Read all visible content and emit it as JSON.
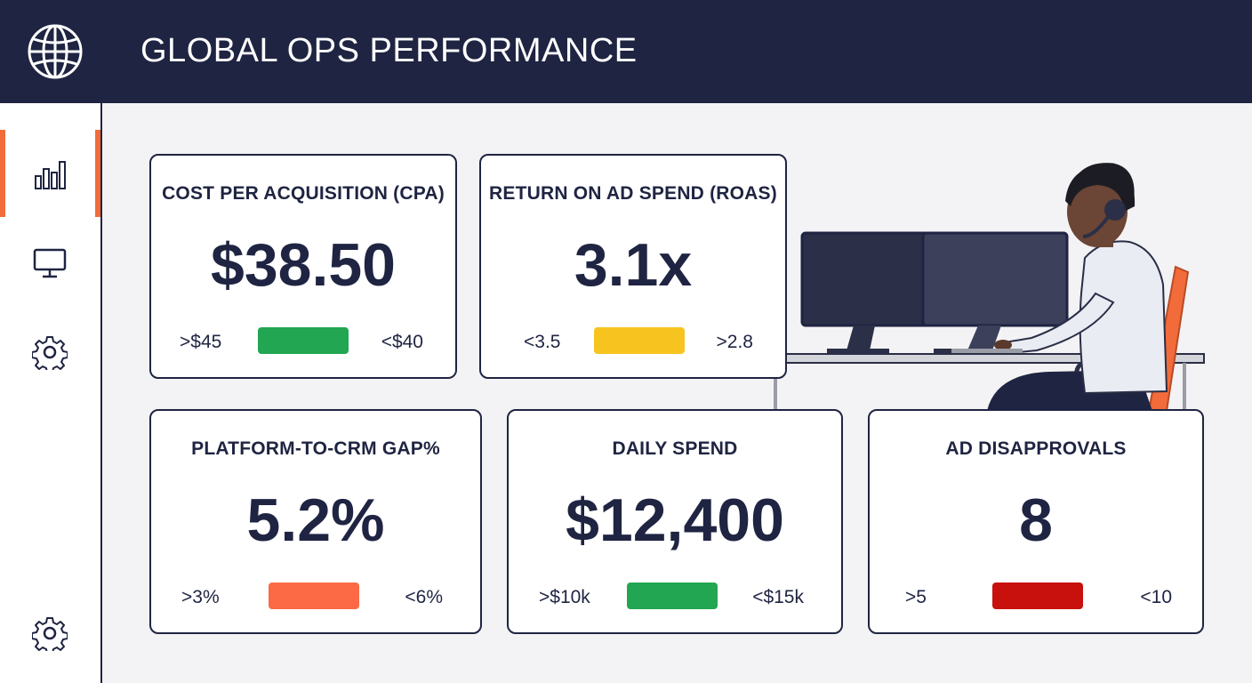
{
  "header": {
    "title": "GLOBAL OPS PERFORMANCE",
    "logo_icon": "globe-icon"
  },
  "sidebar": {
    "items": [
      {
        "name": "analytics",
        "icon": "bar-chart-icon",
        "active": true
      },
      {
        "name": "monitor",
        "icon": "monitor-icon",
        "active": false
      },
      {
        "name": "settings",
        "icon": "gear-icon",
        "active": false
      }
    ],
    "footer_icon": "gear-icon",
    "accent": "#f26b3a"
  },
  "kpis": [
    {
      "title": "COST PER ACQUISITION (CPA)",
      "value": "$38.50",
      "low": ">$45",
      "high": "<$40",
      "status_color": "#22a652"
    },
    {
      "title": "RETURN ON AD SPEND (ROAS)",
      "value": "3.1x",
      "low": "<3.5",
      "high": ">2.8",
      "status_color": "#f7c31f"
    },
    {
      "title": "PLATFORM-TO-CRM GAP%",
      "value": "5.2%",
      "low": ">3%",
      "high": "<6%",
      "status_color": "#fb6a45"
    },
    {
      "title": "DAILY SPEND",
      "value": "$12,400",
      "low": ">$10k",
      "high": "<$15k",
      "status_color": "#22a652"
    },
    {
      "title": "AD DISAPPROVALS",
      "value": "8",
      "low": ">5",
      "high": "<10",
      "status_color": "#c8100d"
    }
  ],
  "colors": {
    "header_bg": "#1f2442",
    "page_bg": "#f3f3f5",
    "text": "#1f2442"
  }
}
